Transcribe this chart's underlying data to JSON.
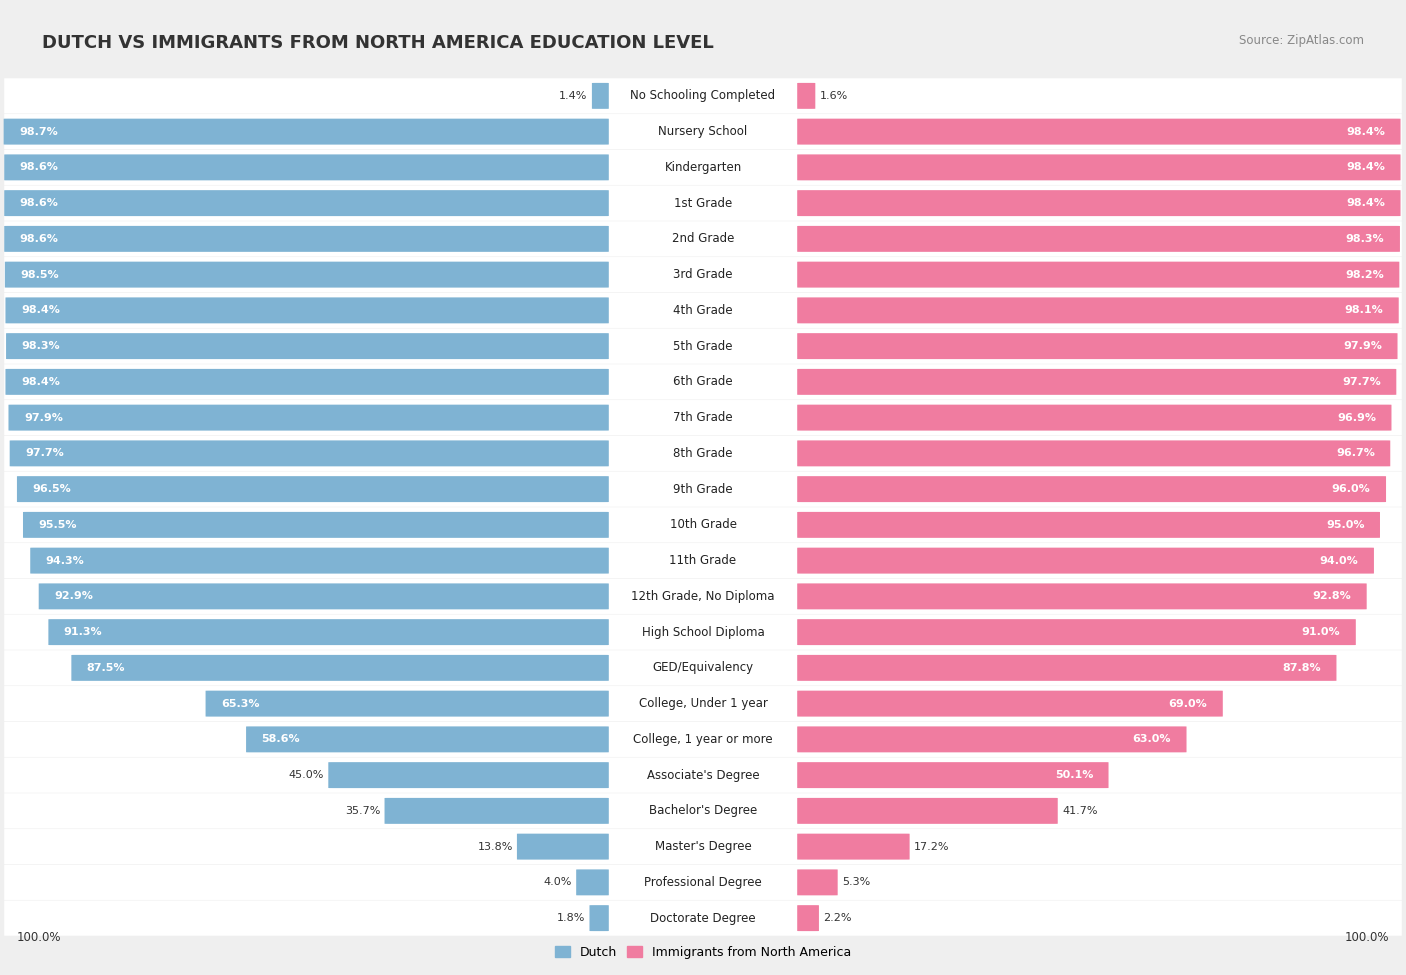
{
  "title": "DUTCH VS IMMIGRANTS FROM NORTH AMERICA EDUCATION LEVEL",
  "source": "Source: ZipAtlas.com",
  "categories": [
    "No Schooling Completed",
    "Nursery School",
    "Kindergarten",
    "1st Grade",
    "2nd Grade",
    "3rd Grade",
    "4th Grade",
    "5th Grade",
    "6th Grade",
    "7th Grade",
    "8th Grade",
    "9th Grade",
    "10th Grade",
    "11th Grade",
    "12th Grade, No Diploma",
    "High School Diploma",
    "GED/Equivalency",
    "College, Under 1 year",
    "College, 1 year or more",
    "Associate's Degree",
    "Bachelor's Degree",
    "Master's Degree",
    "Professional Degree",
    "Doctorate Degree"
  ],
  "dutch": [
    1.4,
    98.7,
    98.6,
    98.6,
    98.6,
    98.5,
    98.4,
    98.3,
    98.4,
    97.9,
    97.7,
    96.5,
    95.5,
    94.3,
    92.9,
    91.3,
    87.5,
    65.3,
    58.6,
    45.0,
    35.7,
    13.8,
    4.0,
    1.8
  ],
  "immigrants": [
    1.6,
    98.4,
    98.4,
    98.4,
    98.3,
    98.2,
    98.1,
    97.9,
    97.7,
    96.9,
    96.7,
    96.0,
    95.0,
    94.0,
    92.8,
    91.0,
    87.8,
    69.0,
    63.0,
    50.1,
    41.7,
    17.2,
    5.3,
    2.2
  ],
  "dutch_color": "#7fb3d3",
  "immigrants_color": "#f07ca0",
  "bg_color": "#efefef",
  "bar_bg_color": "#ffffff",
  "title_fontsize": 13,
  "label_fontsize": 8.5,
  "value_fontsize": 8.0,
  "legend_label_dutch": "Dutch",
  "legend_label_immigrants": "Immigrants from North America",
  "threshold": 50.0
}
